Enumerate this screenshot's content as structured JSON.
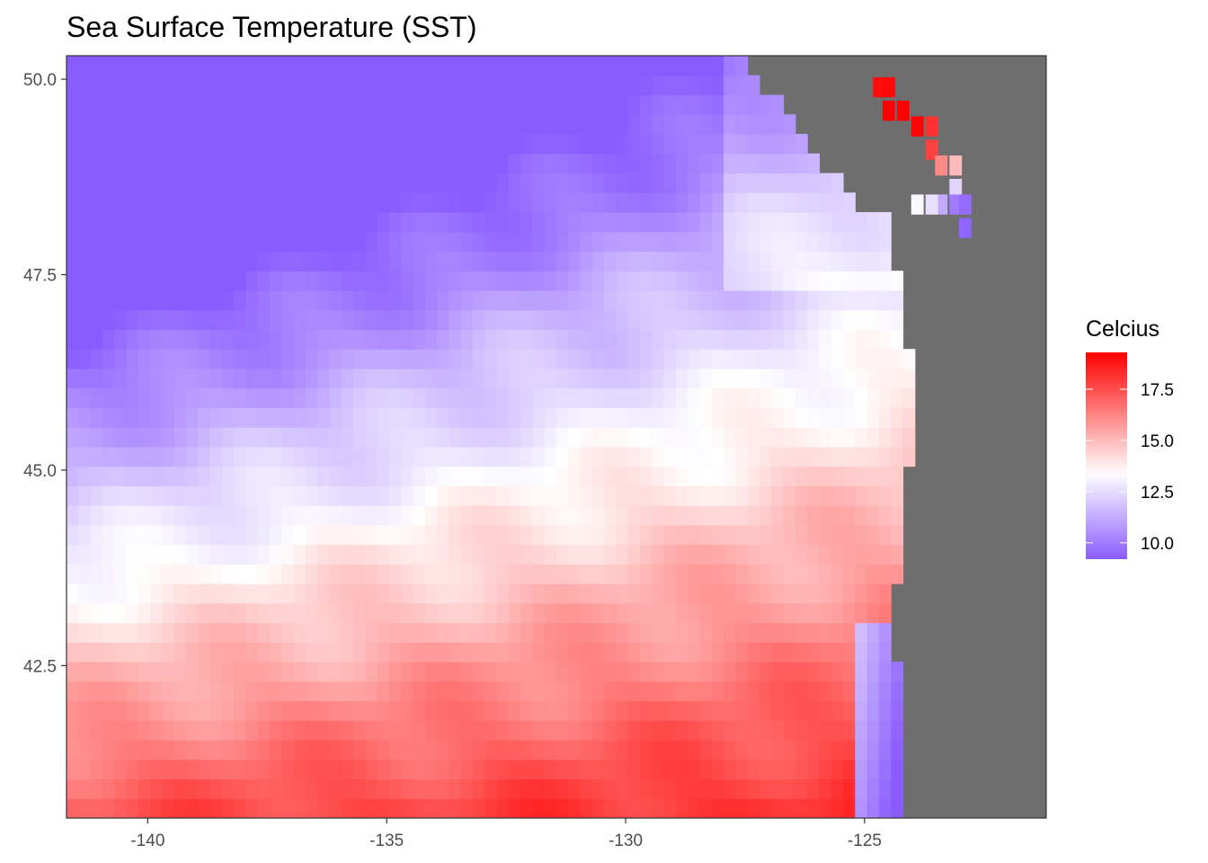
{
  "chart_data": {
    "type": "heatmap",
    "title": "Sea Surface Temperature (SST)",
    "xlabel": "",
    "ylabel": "",
    "xlim": [
      -141.7,
      -121.2
    ],
    "ylim": [
      40.55,
      50.3
    ],
    "x_ticks": [
      -140,
      -135,
      -130,
      -125
    ],
    "x_tick_labels": [
      "-140",
      "-135",
      "-130",
      "-125"
    ],
    "y_ticks": [
      42.5,
      45.0,
      47.5,
      50.0
    ],
    "y_tick_labels": [
      "42.5",
      "45.0",
      "47.5",
      "50.0"
    ],
    "grid": false,
    "cell_size_deg": 0.25,
    "land_color": "#6e6e6e",
    "color_low": "#8a5cff",
    "color_mid": "#ffffff",
    "color_high": "#ff0000",
    "color_range": [
      9.2,
      19.3
    ],
    "color_mid_value": 13.4,
    "legend": {
      "title": "Celcius",
      "position": "right",
      "breaks": [
        10.0,
        12.5,
        15.0,
        17.5
      ],
      "labels": [
        "10.0",
        "12.5",
        "15.0",
        "17.5"
      ]
    },
    "coastline_lat": [
      40.6,
      41.0,
      41.5,
      42.0,
      42.5,
      43.0,
      43.5,
      44.0,
      44.5,
      45.0,
      45.5,
      46.0,
      46.5,
      47.0,
      47.5,
      48.0,
      48.3
    ],
    "coastline_lon": [
      -124.2,
      -124.2,
      -124.1,
      -124.2,
      -124.3,
      -124.4,
      -124.4,
      -124.1,
      -124.1,
      -124.1,
      -123.9,
      -123.9,
      -124.1,
      -124.1,
      -124.3,
      -124.5,
      -124.5
    ],
    "northeast_land_lon": [
      -127.5,
      -127.5,
      -127.0,
      -126.5,
      -126.2,
      -125.8,
      -125.5,
      -125.2
    ],
    "northeast_land_lat": [
      50.3,
      50.0,
      49.8,
      49.5,
      49.2,
      48.9,
      48.6,
      48.4
    ],
    "cold_upwelling": {
      "lon": -124.6,
      "lat_from": 40.6,
      "lat_to": 43.0,
      "min_temp": 9.5
    },
    "puget_sound_cells": [
      {
        "lon": -124.7,
        "lat": 49.9,
        "temp": 19.0
      },
      {
        "lon": -124.5,
        "lat": 49.9,
        "temp": 19.1
      },
      {
        "lon": -124.5,
        "lat": 49.6,
        "temp": 19.3
      },
      {
        "lon": -124.2,
        "lat": 49.6,
        "temp": 19.3
      },
      {
        "lon": -123.9,
        "lat": 49.4,
        "temp": 19.2
      },
      {
        "lon": -123.6,
        "lat": 49.4,
        "temp": 18.2
      },
      {
        "lon": -123.6,
        "lat": 49.1,
        "temp": 17.8
      },
      {
        "lon": -123.4,
        "lat": 48.9,
        "temp": 16.1
      },
      {
        "lon": -123.1,
        "lat": 48.9,
        "temp": 15.0
      },
      {
        "lon": -123.1,
        "lat": 48.6,
        "temp": 12.3
      },
      {
        "lon": -123.1,
        "lat": 48.4,
        "temp": 10.0
      },
      {
        "lon": -122.9,
        "lat": 48.4,
        "temp": 9.6
      },
      {
        "lon": -122.9,
        "lat": 48.1,
        "temp": 9.4
      },
      {
        "lon": -123.4,
        "lat": 48.4,
        "temp": 11.2
      },
      {
        "lon": -123.6,
        "lat": 48.4,
        "temp": 12.6
      },
      {
        "lon": -123.9,
        "lat": 48.4,
        "temp": 13.2
      }
    ]
  }
}
